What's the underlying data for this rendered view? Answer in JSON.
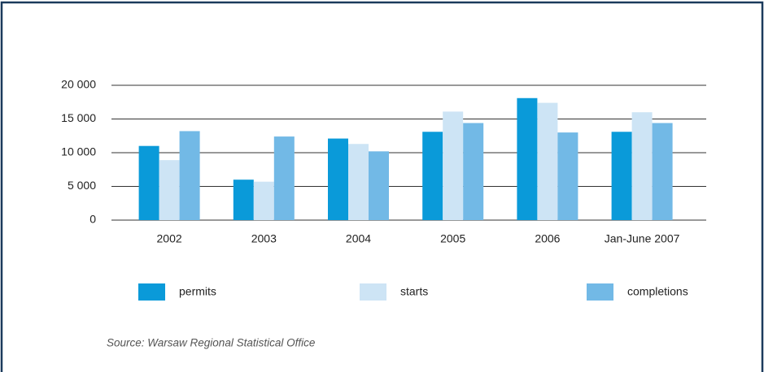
{
  "chart_data": {
    "type": "bar",
    "categories": [
      "2002",
      "2003",
      "2004",
      "2005",
      "2006",
      "Jan-June 2007"
    ],
    "series": [
      {
        "name": "permits",
        "color": "#0a9ad9",
        "values": [
          11000,
          6000,
          12100,
          13100,
          18100,
          13100
        ]
      },
      {
        "name": "starts",
        "color": "#cde4f5",
        "values": [
          8900,
          5700,
          11300,
          16100,
          17400,
          16000
        ]
      },
      {
        "name": "completions",
        "color": "#72b9e6",
        "values": [
          13200,
          12400,
          10200,
          14400,
          13000,
          14400
        ]
      }
    ],
    "ylim": [
      0,
      20000
    ],
    "yticks": [
      0,
      {
        "value": 5000,
        "label": "5 000"
      },
      {
        "value": 10000,
        "label": "10 000"
      },
      {
        "value": 15000,
        "label": "15 000"
      },
      {
        "value": 20000,
        "label": "20 000"
      }
    ],
    "grid": true,
    "legend": "bottom",
    "source": "Source: Warsaw Regional Statistical Office"
  }
}
